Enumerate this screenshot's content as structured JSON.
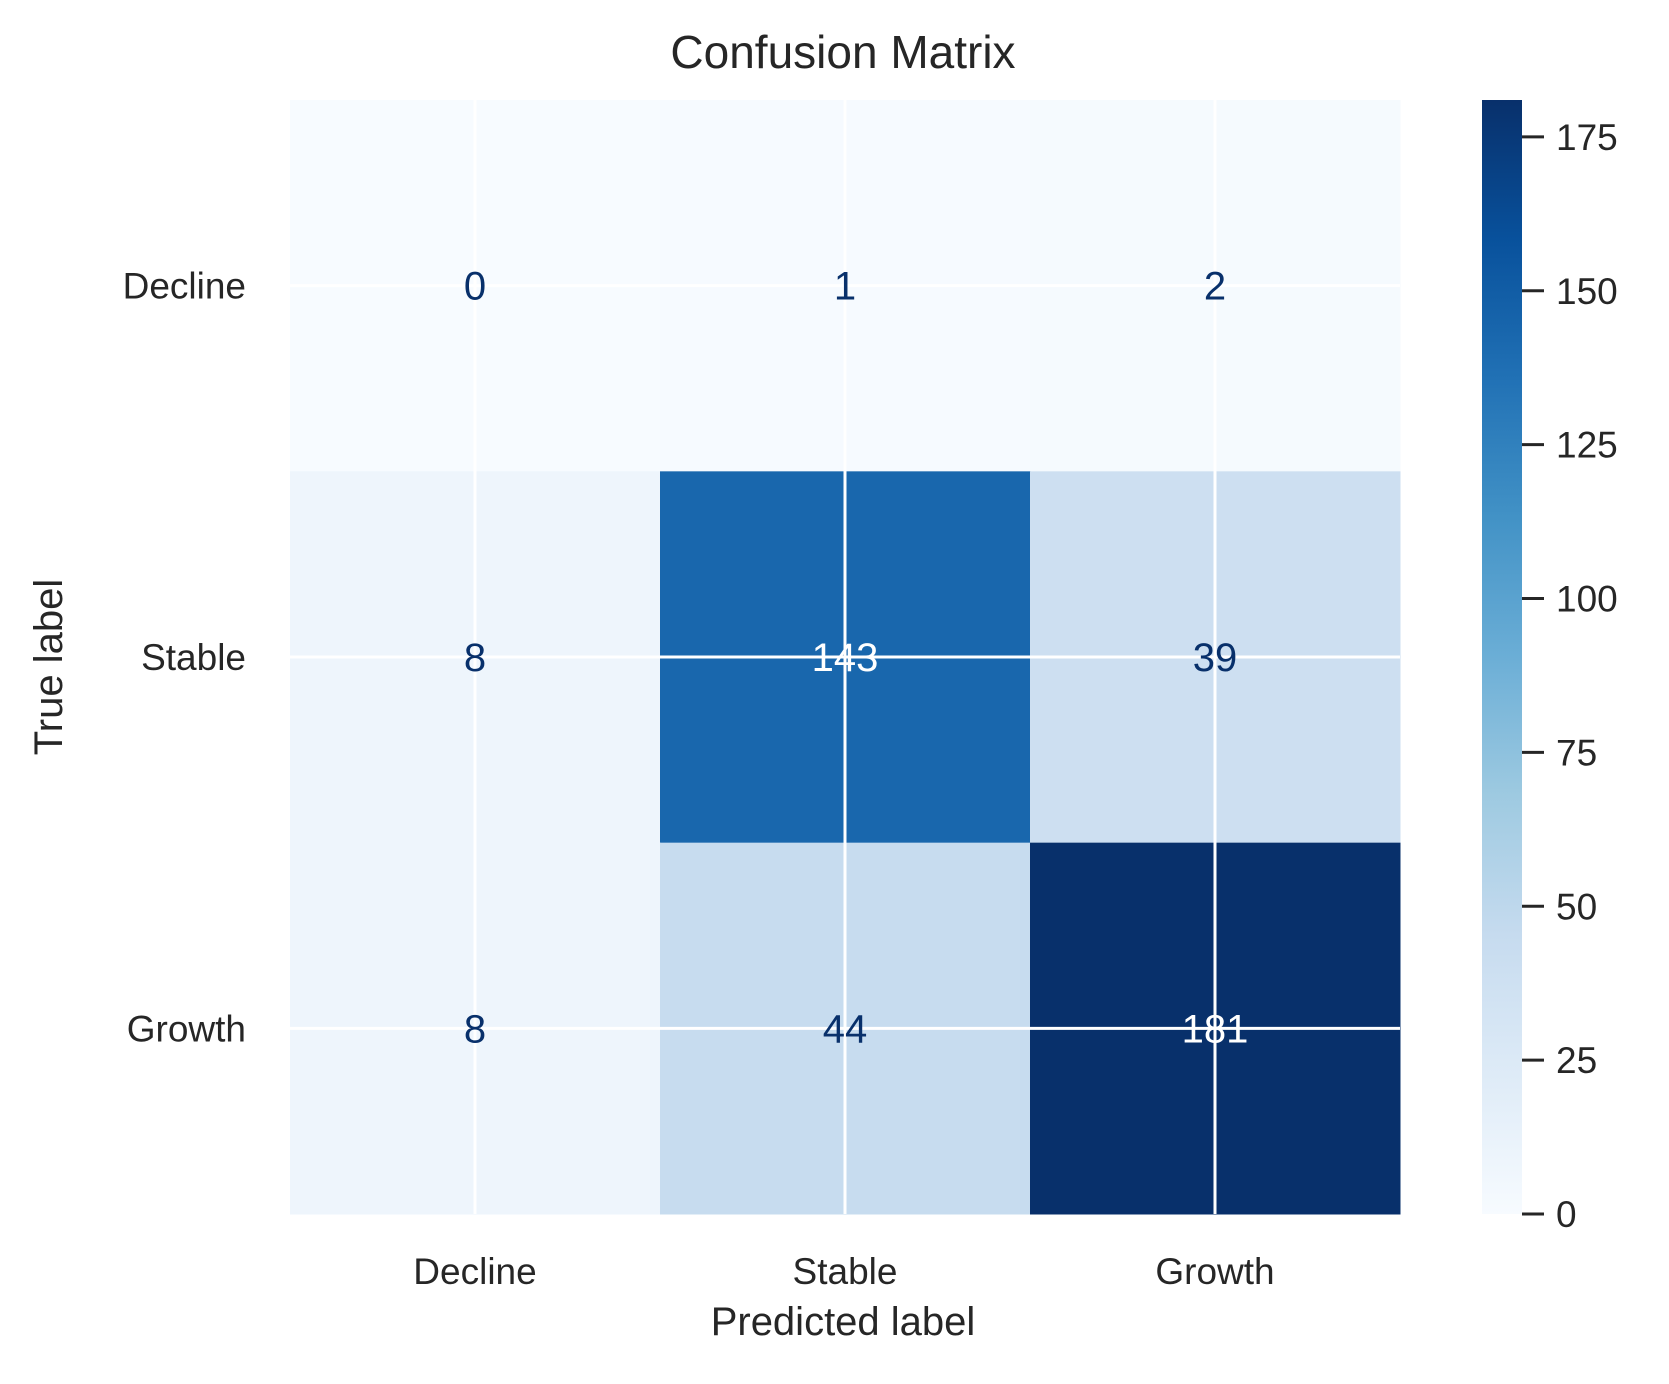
{
  "chart_data": {
    "type": "heatmap",
    "title": "Confusion Matrix",
    "xlabel": "Predicted label",
    "ylabel": "True label",
    "x_categories": [
      "Decline",
      "Stable",
      "Growth"
    ],
    "y_categories": [
      "Decline",
      "Stable",
      "Growth"
    ],
    "matrix": [
      [
        0,
        1,
        2
      ],
      [
        8,
        143,
        39
      ],
      [
        8,
        44,
        181
      ]
    ],
    "colormap": "Blues",
    "colorbar": {
      "min": 0,
      "max": 181,
      "ticks": [
        0,
        25,
        50,
        75,
        100,
        125,
        150,
        175
      ]
    },
    "grid": true,
    "colors": {
      "text_dark": "#08306b",
      "text_light": "#ffffff",
      "label": "#262626",
      "grid": "#ffffff"
    }
  }
}
